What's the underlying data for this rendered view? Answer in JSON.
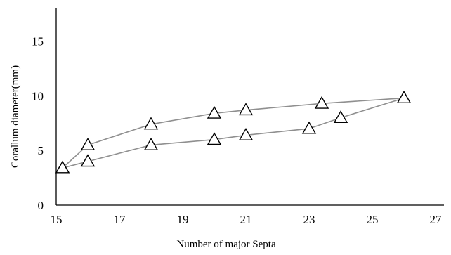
{
  "chart_data": {
    "type": "line",
    "title": "",
    "xlabel": "Number of major Septa",
    "ylabel": "Corallum diameter(mm)",
    "xlim": [
      15,
      27
    ],
    "ylim": [
      0,
      18
    ],
    "x_ticks": [
      "15",
      "17",
      "19",
      "21",
      "23",
      "25",
      "27"
    ],
    "y_ticks": [
      "0",
      "5",
      "10",
      "15"
    ],
    "grid": false,
    "legend": "none",
    "marker": "open-triangle",
    "series": [
      {
        "points": [
          {
            "x": 15.2,
            "y": 3.4
          },
          {
            "x": 16,
            "y": 5.5
          },
          {
            "x": 18,
            "y": 7.4
          },
          {
            "x": 20,
            "y": 8.4
          },
          {
            "x": 21,
            "y": 8.7
          },
          {
            "x": 23.4,
            "y": 9.3
          },
          {
            "x": 26,
            "y": 9.8
          }
        ]
      },
      {
        "points": [
          {
            "x": 15.2,
            "y": 3.4
          },
          {
            "x": 16,
            "y": 4.0
          },
          {
            "x": 18,
            "y": 5.5
          },
          {
            "x": 20,
            "y": 6.0
          },
          {
            "x": 21,
            "y": 6.4
          },
          {
            "x": 23,
            "y": 7.0
          },
          {
            "x": 24,
            "y": 8.0
          },
          {
            "x": 26,
            "y": 9.8
          }
        ]
      }
    ]
  }
}
